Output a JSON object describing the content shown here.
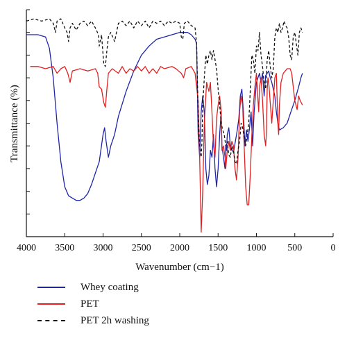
{
  "chart_data": {
    "type": "line",
    "xlabel": "Wavenumber (cm−1)",
    "ylabel": "Transmittance (%)",
    "xlim": [
      4000,
      0
    ],
    "x_reversed": true,
    "xticks": [
      4000,
      3500,
      3000,
      2500,
      2000,
      1500,
      1000,
      500,
      0
    ],
    "y_tick_labels_shown": false,
    "ylim": [
      0,
      100
    ],
    "legend_position": "bottom",
    "series": [
      {
        "name": "Whey coating",
        "color": "#1f24a8",
        "dash": "solid",
        "points": [
          [
            4000,
            89
          ],
          [
            3850,
            89
          ],
          [
            3750,
            88
          ],
          [
            3700,
            83
          ],
          [
            3650,
            70
          ],
          [
            3600,
            50
          ],
          [
            3550,
            33
          ],
          [
            3500,
            22
          ],
          [
            3450,
            18
          ],
          [
            3400,
            17
          ],
          [
            3350,
            16
          ],
          [
            3300,
            16
          ],
          [
            3250,
            17
          ],
          [
            3200,
            19
          ],
          [
            3150,
            23
          ],
          [
            3100,
            28
          ],
          [
            3050,
            33
          ],
          [
            3000,
            45
          ],
          [
            2980,
            48
          ],
          [
            2960,
            42
          ],
          [
            2930,
            35
          ],
          [
            2900,
            40
          ],
          [
            2850,
            45
          ],
          [
            2800,
            53
          ],
          [
            2700,
            64
          ],
          [
            2600,
            73
          ],
          [
            2500,
            80
          ],
          [
            2400,
            84
          ],
          [
            2300,
            87
          ],
          [
            2100,
            89
          ],
          [
            2000,
            90
          ],
          [
            1900,
            90
          ],
          [
            1850,
            89
          ],
          [
            1800,
            87
          ],
          [
            1780,
            85
          ],
          [
            1760,
            45
          ],
          [
            1740,
            35
          ],
          [
            1720,
            55
          ],
          [
            1700,
            62
          ],
          [
            1680,
            55
          ],
          [
            1660,
            30
          ],
          [
            1640,
            23
          ],
          [
            1620,
            27
          ],
          [
            1600,
            38
          ],
          [
            1580,
            35
          ],
          [
            1560,
            45
          ],
          [
            1540,
            30
          ],
          [
            1520,
            22
          ],
          [
            1500,
            30
          ],
          [
            1480,
            45
          ],
          [
            1460,
            55
          ],
          [
            1450,
            40
          ],
          [
            1430,
            35
          ],
          [
            1410,
            30
          ],
          [
            1400,
            40
          ],
          [
            1390,
            38
          ],
          [
            1380,
            45
          ],
          [
            1360,
            48
          ],
          [
            1340,
            40
          ],
          [
            1300,
            37
          ],
          [
            1250,
            47
          ],
          [
            1230,
            52
          ],
          [
            1210,
            62
          ],
          [
            1190,
            65
          ],
          [
            1170,
            55
          ],
          [
            1150,
            40
          ],
          [
            1130,
            47
          ],
          [
            1110,
            42
          ],
          [
            1090,
            48
          ],
          [
            1070,
            55
          ],
          [
            1050,
            40
          ],
          [
            1030,
            55
          ],
          [
            1000,
            68
          ],
          [
            980,
            70
          ],
          [
            960,
            72
          ],
          [
            940,
            68
          ],
          [
            920,
            72
          ],
          [
            900,
            62
          ],
          [
            880,
            71
          ],
          [
            860,
            72
          ],
          [
            840,
            73
          ],
          [
            820,
            70
          ],
          [
            800,
            68
          ],
          [
            780,
            65
          ],
          [
            760,
            62
          ],
          [
            740,
            55
          ],
          [
            720,
            50
          ],
          [
            700,
            47
          ],
          [
            650,
            48
          ],
          [
            600,
            50
          ],
          [
            550,
            55
          ],
          [
            500,
            60
          ],
          [
            450,
            66
          ],
          [
            420,
            70
          ],
          [
            400,
            72
          ]
        ]
      },
      {
        "name": "PET",
        "color": "#e02020",
        "dash": "solid",
        "points": [
          [
            3950,
            75
          ],
          [
            3850,
            75
          ],
          [
            3750,
            74
          ],
          [
            3650,
            75
          ],
          [
            3600,
            72
          ],
          [
            3550,
            74
          ],
          [
            3500,
            75
          ],
          [
            3460,
            72
          ],
          [
            3430,
            68
          ],
          [
            3400,
            73
          ],
          [
            3300,
            74
          ],
          [
            3200,
            73
          ],
          [
            3100,
            74
          ],
          [
            3070,
            72
          ],
          [
            3050,
            66
          ],
          [
            3020,
            65
          ],
          [
            2990,
            59
          ],
          [
            2970,
            57
          ],
          [
            2950,
            65
          ],
          [
            2930,
            72
          ],
          [
            2880,
            74
          ],
          [
            2800,
            72
          ],
          [
            2750,
            75
          ],
          [
            2700,
            72
          ],
          [
            2650,
            74
          ],
          [
            2600,
            73
          ],
          [
            2550,
            75
          ],
          [
            2500,
            73
          ],
          [
            2450,
            75
          ],
          [
            2400,
            72
          ],
          [
            2350,
            74
          ],
          [
            2300,
            72
          ],
          [
            2250,
            75
          ],
          [
            2200,
            74
          ],
          [
            2100,
            75
          ],
          [
            2050,
            74
          ],
          [
            1980,
            72
          ],
          [
            1950,
            70
          ],
          [
            1920,
            74
          ],
          [
            1850,
            75
          ],
          [
            1800,
            72
          ],
          [
            1760,
            60
          ],
          [
            1740,
            35
          ],
          [
            1720,
            2
          ],
          [
            1700,
            20
          ],
          [
            1680,
            50
          ],
          [
            1650,
            68
          ],
          [
            1620,
            64
          ],
          [
            1600,
            68
          ],
          [
            1580,
            55
          ],
          [
            1560,
            40
          ],
          [
            1540,
            35
          ],
          [
            1520,
            52
          ],
          [
            1500,
            58
          ],
          [
            1480,
            62
          ],
          [
            1460,
            55
          ],
          [
            1450,
            38
          ],
          [
            1430,
            40
          ],
          [
            1410,
            35
          ],
          [
            1400,
            30
          ],
          [
            1380,
            38
          ],
          [
            1360,
            42
          ],
          [
            1340,
            38
          ],
          [
            1320,
            42
          ],
          [
            1300,
            40
          ],
          [
            1280,
            30
          ],
          [
            1260,
            25
          ],
          [
            1240,
            35
          ],
          [
            1220,
            55
          ],
          [
            1200,
            62
          ],
          [
            1180,
            58
          ],
          [
            1160,
            40
          ],
          [
            1140,
            22
          ],
          [
            1120,
            14
          ],
          [
            1100,
            14
          ],
          [
            1080,
            28
          ],
          [
            1060,
            45
          ],
          [
            1040,
            58
          ],
          [
            1020,
            66
          ],
          [
            1000,
            72
          ],
          [
            980,
            60
          ],
          [
            970,
            55
          ],
          [
            960,
            66
          ],
          [
            940,
            70
          ],
          [
            920,
            60
          ],
          [
            900,
            45
          ],
          [
            880,
            40
          ],
          [
            870,
            46
          ],
          [
            860,
            65
          ],
          [
            850,
            70
          ],
          [
            840,
            68
          ],
          [
            800,
            50
          ],
          [
            780,
            60
          ],
          [
            760,
            70
          ],
          [
            740,
            72
          ],
          [
            720,
            50
          ],
          [
            710,
            45
          ],
          [
            700,
            58
          ],
          [
            680,
            68
          ],
          [
            650,
            72
          ],
          [
            600,
            74
          ],
          [
            560,
            74
          ],
          [
            540,
            72
          ],
          [
            500,
            60
          ],
          [
            470,
            56
          ],
          [
            450,
            62
          ],
          [
            430,
            60
          ],
          [
            400,
            58
          ]
        ]
      },
      {
        "name": "PET 2h washing",
        "color": "#111111",
        "dash": "dashed",
        "points": [
          [
            4000,
            95
          ],
          [
            3900,
            96
          ],
          [
            3800,
            95
          ],
          [
            3700,
            96
          ],
          [
            3650,
            94
          ],
          [
            3620,
            90
          ],
          [
            3600,
            95
          ],
          [
            3550,
            96
          ],
          [
            3500,
            92
          ],
          [
            3470,
            90
          ],
          [
            3450,
            86
          ],
          [
            3430,
            92
          ],
          [
            3400,
            94
          ],
          [
            3350,
            91
          ],
          [
            3300,
            94
          ],
          [
            3250,
            95
          ],
          [
            3200,
            93
          ],
          [
            3150,
            95
          ],
          [
            3100,
            92
          ],
          [
            3060,
            89
          ],
          [
            3050,
            84
          ],
          [
            3020,
            89
          ],
          [
            2990,
            76
          ],
          [
            2970,
            75
          ],
          [
            2950,
            82
          ],
          [
            2930,
            88
          ],
          [
            2900,
            90
          ],
          [
            2850,
            86
          ],
          [
            2800,
            94
          ],
          [
            2750,
            95
          ],
          [
            2700,
            93
          ],
          [
            2650,
            95
          ],
          [
            2600,
            92
          ],
          [
            2550,
            95
          ],
          [
            2500,
            93
          ],
          [
            2450,
            95
          ],
          [
            2400,
            92
          ],
          [
            2350,
            95
          ],
          [
            2300,
            94
          ],
          [
            2250,
            95
          ],
          [
            2200,
            93
          ],
          [
            2150,
            95
          ],
          [
            2100,
            94
          ],
          [
            2050,
            95
          ],
          [
            2000,
            94
          ],
          [
            1980,
            88
          ],
          [
            1960,
            87
          ],
          [
            1940,
            94
          ],
          [
            1900,
            95
          ],
          [
            1850,
            93
          ],
          [
            1800,
            92
          ],
          [
            1780,
            85
          ],
          [
            1760,
            55
          ],
          [
            1740,
            40
          ],
          [
            1720,
            35
          ],
          [
            1710,
            42
          ],
          [
            1700,
            58
          ],
          [
            1680,
            70
          ],
          [
            1660,
            80
          ],
          [
            1640,
            76
          ],
          [
            1620,
            80
          ],
          [
            1600,
            82
          ],
          [
            1580,
            78
          ],
          [
            1560,
            82
          ],
          [
            1540,
            78
          ],
          [
            1520,
            74
          ],
          [
            1500,
            65
          ],
          [
            1480,
            58
          ],
          [
            1460,
            50
          ],
          [
            1440,
            47
          ],
          [
            1420,
            45
          ],
          [
            1400,
            40
          ],
          [
            1380,
            42
          ],
          [
            1360,
            36
          ],
          [
            1340,
            35
          ],
          [
            1320,
            40
          ],
          [
            1300,
            38
          ],
          [
            1280,
            33
          ],
          [
            1260,
            32
          ],
          [
            1240,
            38
          ],
          [
            1220,
            42
          ],
          [
            1200,
            50
          ],
          [
            1180,
            48
          ],
          [
            1160,
            44
          ],
          [
            1140,
            40
          ],
          [
            1120,
            45
          ],
          [
            1100,
            50
          ],
          [
            1080,
            65
          ],
          [
            1060,
            80
          ],
          [
            1040,
            78
          ],
          [
            1020,
            72
          ],
          [
            1000,
            84
          ],
          [
            980,
            82
          ],
          [
            960,
            90
          ],
          [
            940,
            80
          ],
          [
            920,
            75
          ],
          [
            900,
            68
          ],
          [
            880,
            65
          ],
          [
            860,
            78
          ],
          [
            840,
            82
          ],
          [
            820,
            75
          ],
          [
            800,
            70
          ],
          [
            780,
            74
          ],
          [
            760,
            88
          ],
          [
            740,
            92
          ],
          [
            720,
            90
          ],
          [
            700,
            94
          ],
          [
            680,
            90
          ],
          [
            660,
            92
          ],
          [
            640,
            95
          ],
          [
            620,
            93
          ],
          [
            600,
            92
          ],
          [
            580,
            88
          ],
          [
            560,
            80
          ],
          [
            540,
            78
          ],
          [
            520,
            88
          ],
          [
            500,
            90
          ],
          [
            480,
            85
          ],
          [
            460,
            80
          ],
          [
            440,
            90
          ],
          [
            420,
            92
          ],
          [
            400,
            90
          ]
        ]
      }
    ]
  }
}
